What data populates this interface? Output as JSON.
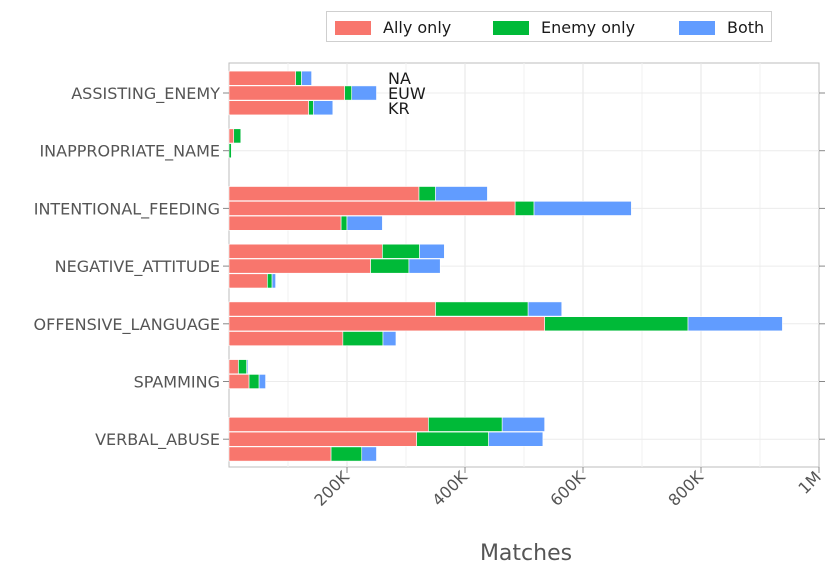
{
  "chart_data": {
    "type": "bar",
    "orientation": "horizontal",
    "stacked": true,
    "xlabel": "Matches",
    "xlim": [
      0,
      1000000
    ],
    "xticks": [
      200000,
      400000,
      600000,
      800000,
      1000000
    ],
    "xtick_labels": [
      "200K",
      "400K",
      "600K",
      "800K",
      "1M"
    ],
    "grid": true,
    "legend_position": "top",
    "categories": [
      "ASSISTING_ENEMY",
      "INAPPROPRIATE_NAME",
      "INTENTIONAL_FEEDING",
      "NEGATIVE_ATTITUDE",
      "OFFENSIVE_LANGUAGE",
      "SPAMMING",
      "VERBAL_ABUSE"
    ],
    "regions": [
      "NA",
      "EUW",
      "KR"
    ],
    "series": [
      {
        "name": "Ally only",
        "color": "#F8766D",
        "values": {
          "NA": [
            113000,
            8000,
            322000,
            260000,
            350000,
            16000,
            338000
          ],
          "EUW": [
            196000,
            0,
            485000,
            240000,
            535000,
            34000,
            318000
          ],
          "KR": [
            135000,
            0,
            190000,
            65000,
            193000,
            0,
            173000
          ]
        }
      },
      {
        "name": "Enemy only",
        "color": "#00BA38",
        "values": {
          "NA": [
            10000,
            12000,
            28000,
            63000,
            157000,
            14000,
            125000
          ],
          "EUW": [
            12000,
            4000,
            32000,
            65000,
            243000,
            17000,
            122000
          ],
          "KR": [
            8000,
            0,
            10000,
            8000,
            68000,
            0,
            52000
          ]
        }
      },
      {
        "name": "Both",
        "color": "#619CFF",
        "values": {
          "NA": [
            17000,
            0,
            88000,
            42000,
            57000,
            2000,
            72000
          ],
          "EUW": [
            42000,
            0,
            165000,
            53000,
            160000,
            11000,
            92000
          ],
          "KR": [
            33000,
            0,
            60000,
            6000,
            22000,
            0,
            25000
          ]
        }
      }
    ],
    "annotations": [
      "NA",
      "EUW",
      "KR"
    ]
  }
}
